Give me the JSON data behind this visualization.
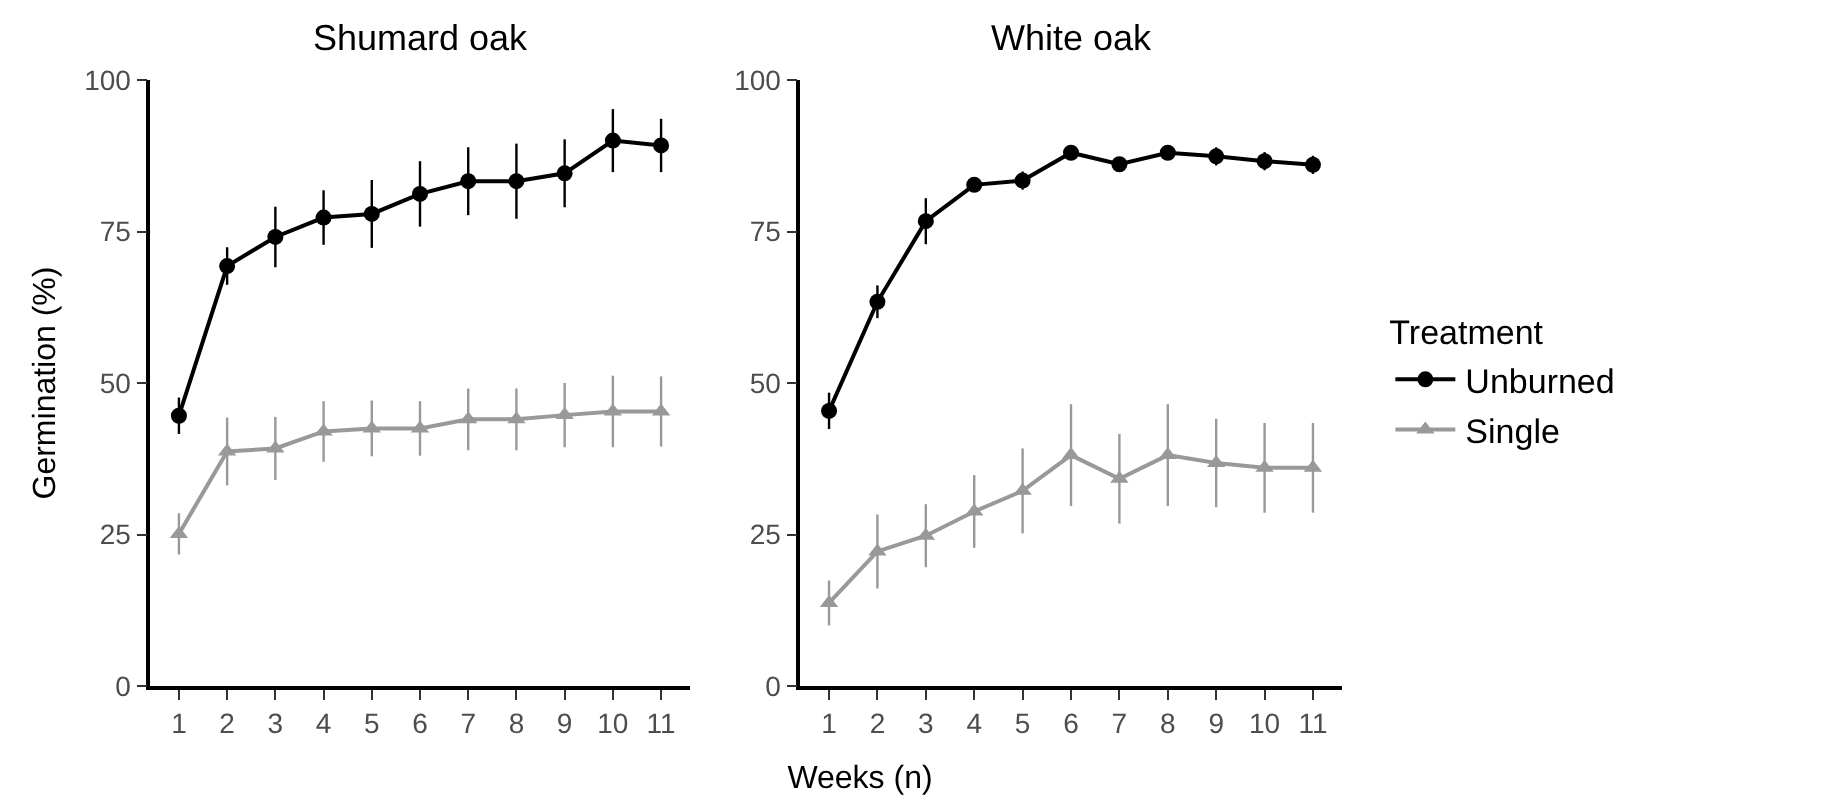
{
  "chart_data": [
    {
      "type": "line",
      "title": "Shumard oak",
      "ylabel": "Germination (%)",
      "xlabel": "Weeks (n)",
      "categories": [
        "1",
        "2",
        "3",
        "4",
        "5",
        "6",
        "7",
        "8",
        "9",
        "10",
        "11"
      ],
      "ylim": [
        0,
        100
      ],
      "yticks": [
        0,
        25,
        50,
        75,
        100
      ],
      "grid": false,
      "legend": false,
      "series": [
        {
          "color": "#000000",
          "marker": "circle",
          "values": [
            44.6,
            69.3,
            74.1,
            77.3,
            77.9,
            81.2,
            83.3,
            83.3,
            84.6,
            90,
            89.2
          ],
          "errors": [
            3,
            3.1,
            5,
            4.5,
            5.6,
            5.4,
            5.6,
            6.2,
            5.6,
            5.2,
            4.4
          ]
        },
        {
          "color": "#999999",
          "marker": "triangle",
          "values": [
            25.1,
            38.7,
            39.2,
            42,
            42.5,
            42.5,
            44,
            44,
            44.7,
            45.3,
            45.3
          ],
          "errors": [
            3.4,
            5.6,
            5.2,
            5,
            4.6,
            4.5,
            5.1,
            5.1,
            5.3,
            5.9,
            5.8
          ]
        }
      ]
    },
    {
      "type": "line",
      "title": "White oak",
      "categories": [
        "1",
        "2",
        "3",
        "4",
        "5",
        "6",
        "7",
        "8",
        "9",
        "10",
        "11"
      ],
      "ylim": [
        0,
        100
      ],
      "yticks": [
        0,
        25,
        50,
        75,
        100
      ],
      "grid": false,
      "legend": "right",
      "legend_title": "Treatment",
      "series": [
        {
          "name": "Unburned",
          "color": "#000000",
          "marker": "circle",
          "values": [
            45.4,
            63.4,
            76.7,
            82.7,
            83.4,
            88,
            86.1,
            88,
            87.4,
            86.6,
            86
          ],
          "errors": [
            3,
            2.7,
            3.8,
            1,
            1.5,
            0.5,
            1,
            0.5,
            1.5,
            1.5,
            1.5
          ]
        },
        {
          "name": "Single",
          "color": "#999999",
          "marker": "triangle",
          "values": [
            13.7,
            22.2,
            24.8,
            28.8,
            32.2,
            38.1,
            34.2,
            38.1,
            36.8,
            36,
            36
          ],
          "errors": [
            3.7,
            6.1,
            5.2,
            6,
            7,
            8.4,
            7.4,
            8.4,
            7.3,
            7.4,
            7.4
          ]
        }
      ]
    }
  ]
}
